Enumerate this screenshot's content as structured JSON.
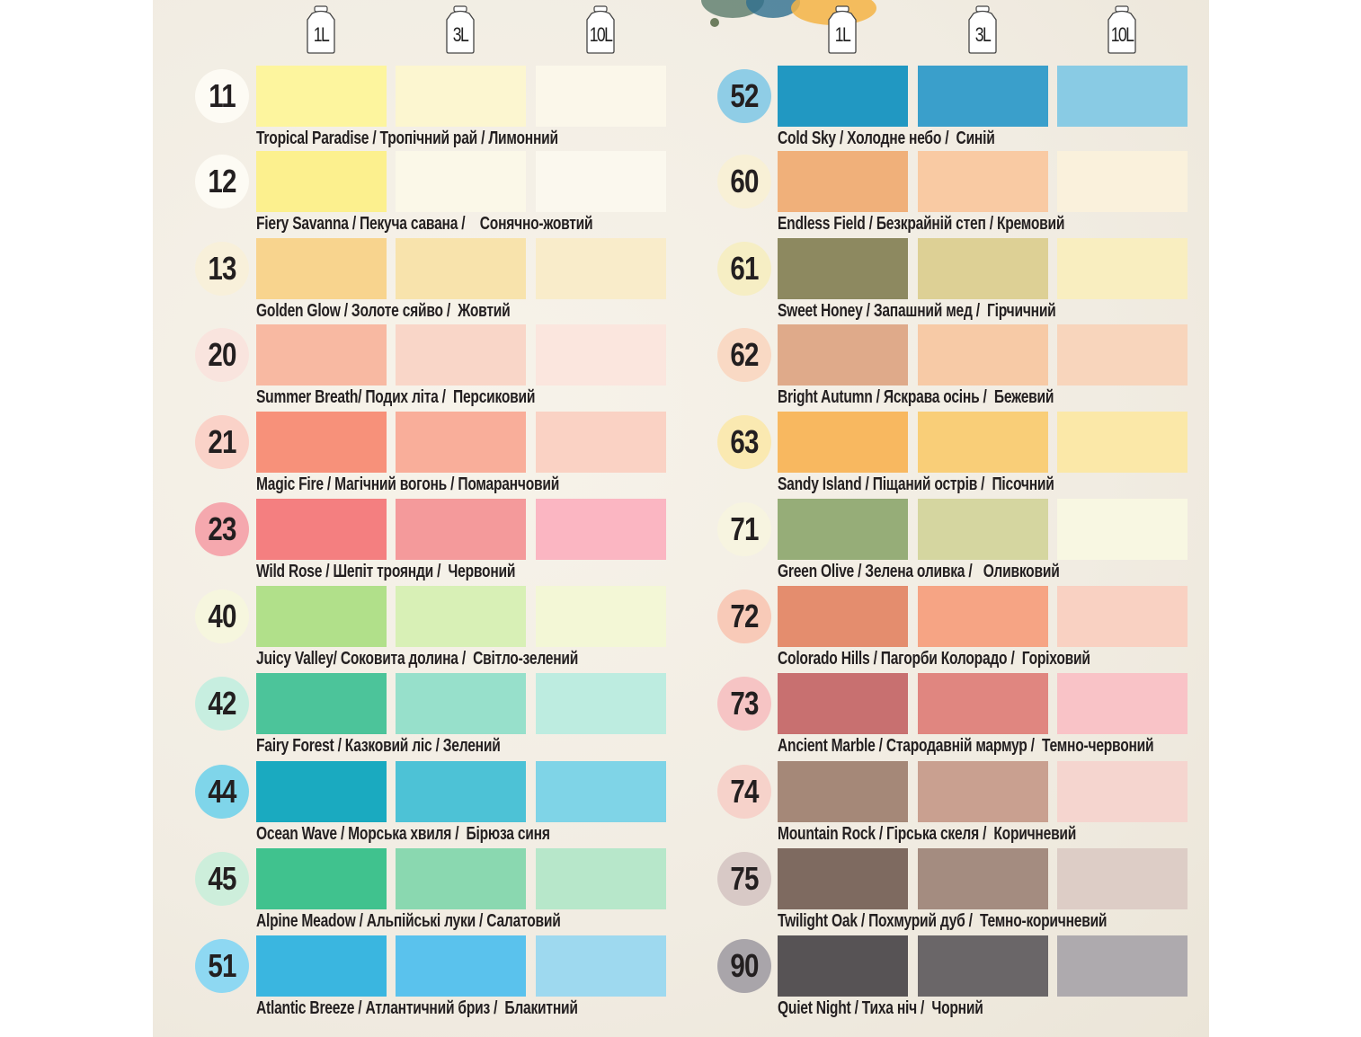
{
  "volumes": [
    "1L",
    "3L",
    "10L"
  ],
  "left_column": [
    {
      "number": "11",
      "name": "Tropical Paradise / Тропічний рай / Лимонний",
      "badge": "#fdfbf4",
      "swatches": [
        "#fdf59e",
        "#fcf6d0",
        "#fbf7ea"
      ]
    },
    {
      "number": "12",
      "name": "Fiery Savanna / Пекуча савана /    Сонячно-жовтий",
      "badge": "#fdfbf4",
      "swatches": [
        "#fcf08e",
        "#fbf8e8",
        "#fbf8ee"
      ]
    },
    {
      "number": "13",
      "name": "Golden Glow / Золоте сяйво /  Жовтий",
      "badge": "#f8f0da",
      "swatches": [
        "#f8d48e",
        "#f8e3ac",
        "#f9ecca"
      ]
    },
    {
      "number": "20",
      "name": "Summer Breath/ Подих літа /  Персиковий",
      "badge": "#f9e4de",
      "swatches": [
        "#f8b9a2",
        "#f9d6c8",
        "#fbe6de"
      ]
    },
    {
      "number": "21",
      "name": "Magic Fire / Магічний вогонь / Помаранчовий",
      "badge": "#fad2c8",
      "swatches": [
        "#f7917a",
        "#f9ae9a",
        "#fad2c4"
      ]
    },
    {
      "number": "23",
      "name": "Wild Rose / Шепіт троянди /  Червоний",
      "badge": "#f5a8ae",
      "swatches": [
        "#f47f80",
        "#f49a9b",
        "#fbb6c2"
      ]
    },
    {
      "number": "40",
      "name": "Juicy Valley/ Соковита долина /  Світло-зелений",
      "badge": "#f6f6de",
      "swatches": [
        "#b1e08a",
        "#d8f0b6",
        "#f3f7d6"
      ]
    },
    {
      "number": "42",
      "name": "Fairy Forest / Казковий ліс / Зелений",
      "badge": "#c7eee0",
      "swatches": [
        "#4cc49a",
        "#97e0cb",
        "#bdece0"
      ]
    },
    {
      "number": "44",
      "name": "Ocean Wave / Морська хвиля /  Бірюза синя",
      "badge": "#7fd5ea",
      "swatches": [
        "#1aaac0",
        "#4dc2d6",
        "#7fd4e7"
      ]
    },
    {
      "number": "45",
      "name": "Alpine Meadow / Альпійські луки / Салатовий",
      "badge": "#cdeedb",
      "swatches": [
        "#40c28e",
        "#8ad8b0",
        "#b7e7ca"
      ]
    },
    {
      "number": "51",
      "name": "Atlantic Breeze / Атлантичний бриз /  Блакитний",
      "badge": "#8ed8f2",
      "swatches": [
        "#3ab6e0",
        "#5ac2ed",
        "#9ed9ef"
      ]
    }
  ],
  "right_column": [
    {
      "number": "52",
      "name": "Cold Sky / Холодне небо /  Синій",
      "badge": "#8fcde6",
      "swatches": [
        "#2198c2",
        "#3a9fcb",
        "#89cbe4"
      ]
    },
    {
      "number": "60",
      "name": "Endless Field / Безкрайній степ / Кремовий",
      "badge": "#f8f0d6",
      "swatches": [
        "#f0b07a",
        "#f9caa3",
        "#faf1dc"
      ]
    },
    {
      "number": "61",
      "name": "Sweet Honey / Запашний мед /  Гірчичний",
      "badge": "#f6eec4",
      "swatches": [
        "#8d8960",
        "#ddd095",
        "#f9eec0"
      ]
    },
    {
      "number": "62",
      "name": "Bright Autumn / Яскрава осінь /  Бежевий",
      "badge": "#f9d9c4",
      "swatches": [
        "#dfaa8a",
        "#f7caa6",
        "#f8d5bc"
      ]
    },
    {
      "number": "63",
      "name": "Sandy Island / Піщаний острів /  Пісочний",
      "badge": "#fae9b1",
      "swatches": [
        "#f8b860",
        "#f9ce78",
        "#fbe8a8"
      ]
    },
    {
      "number": "71",
      "name": "Green Olive / Зелена оливка /   Оливковий",
      "badge": "#f7f4e0",
      "swatches": [
        "#96ad78",
        "#d5d6a0",
        "#f8f7e2"
      ]
    },
    {
      "number": "72",
      "name": "Colorado Hills / Пагорби Колорадо /  Горіховий",
      "badge": "#f8cab8",
      "swatches": [
        "#e48d6e",
        "#f6a484",
        "#f9d1c2"
      ]
    },
    {
      "number": "73",
      "name": "Ancient Marble / Стародавній мармур /  Темно-червоний",
      "badge": "#f6c4c4",
      "swatches": [
        "#c87070",
        "#e08680",
        "#f9c3c7"
      ]
    },
    {
      "number": "74",
      "name": "Mountain Rock / Гірська скеля /  Коричневий",
      "badge": "#f6d2ca",
      "swatches": [
        "#a58878",
        "#c9a090",
        "#f5d5cf"
      ]
    },
    {
      "number": "75",
      "name": "Twilight Oak / Похмурий дуб /  Темно-коричневий",
      "badge": "#d8c9c6",
      "swatches": [
        "#7e6a60",
        "#a48c80",
        "#ddcdc6"
      ]
    },
    {
      "number": "90",
      "name": "Quiet Night / Тиха ніч /  Чорний",
      "badge": "#a9a5aa",
      "swatches": [
        "#575355",
        "#6a6668",
        "#aeaaae"
      ]
    }
  ]
}
